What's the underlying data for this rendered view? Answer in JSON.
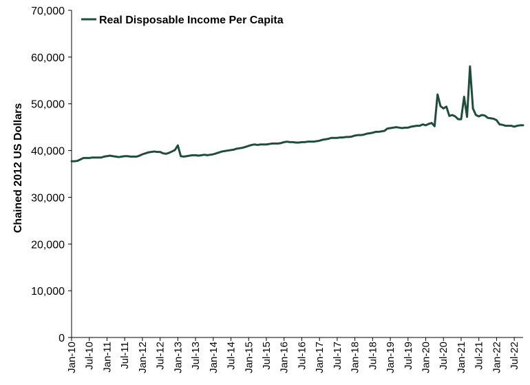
{
  "chart_data": {
    "type": "line",
    "ylabel": "Chained 2012 US Dollars",
    "xlabel": "",
    "ylim": [
      0,
      70000
    ],
    "yticks": [
      "0",
      "10,000",
      "20,000",
      "30,000",
      "40,000",
      "50,000",
      "60,000",
      "70,000"
    ],
    "xticks": [
      "Jan-10",
      "Jul-10",
      "Jan-11",
      "Jul-11",
      "Jan-12",
      "Jul-12",
      "Jan-13",
      "Jul-13",
      "Jan-14",
      "Jul-14",
      "Jan-15",
      "Jul-15",
      "Jan-16",
      "Jul-16",
      "Jan-17",
      "Jul-17",
      "Jan-18",
      "Jul-18",
      "Jan-19",
      "Jul-19",
      "Jan-20",
      "Jul-20",
      "Jan-21",
      "Jul-21",
      "Jan-22",
      "Jul-22"
    ],
    "grid": false,
    "legend": "top-left",
    "series": [
      {
        "name": "Real Disposable Income Per Capita",
        "color": "#1e4d3b",
        "x": [
          "2010-01",
          "2010-02",
          "2010-03",
          "2010-04",
          "2010-05",
          "2010-06",
          "2010-07",
          "2010-08",
          "2010-09",
          "2010-10",
          "2010-11",
          "2010-12",
          "2011-01",
          "2011-02",
          "2011-03",
          "2011-04",
          "2011-05",
          "2011-06",
          "2011-07",
          "2011-08",
          "2011-09",
          "2011-10",
          "2011-11",
          "2011-12",
          "2012-01",
          "2012-02",
          "2012-03",
          "2012-04",
          "2012-05",
          "2012-06",
          "2012-07",
          "2012-08",
          "2012-09",
          "2012-10",
          "2012-11",
          "2012-12",
          "2013-01",
          "2013-02",
          "2013-03",
          "2013-04",
          "2013-05",
          "2013-06",
          "2013-07",
          "2013-08",
          "2013-09",
          "2013-10",
          "2013-11",
          "2013-12",
          "2014-01",
          "2014-02",
          "2014-03",
          "2014-04",
          "2014-05",
          "2014-06",
          "2014-07",
          "2014-08",
          "2014-09",
          "2014-10",
          "2014-11",
          "2014-12",
          "2015-01",
          "2015-02",
          "2015-03",
          "2015-04",
          "2015-05",
          "2015-06",
          "2015-07",
          "2015-08",
          "2015-09",
          "2015-10",
          "2015-11",
          "2015-12",
          "2016-01",
          "2016-02",
          "2016-03",
          "2016-04",
          "2016-05",
          "2016-06",
          "2016-07",
          "2016-08",
          "2016-09",
          "2016-10",
          "2016-11",
          "2016-12",
          "2017-01",
          "2017-02",
          "2017-03",
          "2017-04",
          "2017-05",
          "2017-06",
          "2017-07",
          "2017-08",
          "2017-09",
          "2017-10",
          "2017-11",
          "2017-12",
          "2018-01",
          "2018-02",
          "2018-03",
          "2018-04",
          "2018-05",
          "2018-06",
          "2018-07",
          "2018-08",
          "2018-09",
          "2018-10",
          "2018-11",
          "2018-12",
          "2019-01",
          "2019-02",
          "2019-03",
          "2019-04",
          "2019-05",
          "2019-06",
          "2019-07",
          "2019-08",
          "2019-09",
          "2019-10",
          "2019-11",
          "2019-12",
          "2020-01",
          "2020-02",
          "2020-03",
          "2020-04",
          "2020-05",
          "2020-06",
          "2020-07",
          "2020-08",
          "2020-09",
          "2020-10",
          "2020-11",
          "2020-12",
          "2021-01",
          "2021-02",
          "2021-03",
          "2021-04",
          "2021-05",
          "2021-06",
          "2021-07",
          "2021-08",
          "2021-09",
          "2021-10",
          "2021-11",
          "2021-12",
          "2022-01",
          "2022-02",
          "2022-03",
          "2022-04",
          "2022-05",
          "2022-06",
          "2022-07",
          "2022-08",
          "2022-09",
          "2022-10"
        ],
        "values": [
          37700,
          37700,
          37800,
          38100,
          38400,
          38400,
          38400,
          38500,
          38500,
          38500,
          38500,
          38700,
          38800,
          38900,
          38800,
          38700,
          38600,
          38700,
          38800,
          38800,
          38700,
          38700,
          38700,
          38900,
          39200,
          39400,
          39600,
          39700,
          39800,
          39700,
          39700,
          39400,
          39300,
          39500,
          39800,
          40100,
          41100,
          38800,
          38700,
          38800,
          38900,
          39000,
          39000,
          38900,
          39000,
          39100,
          39000,
          39100,
          39200,
          39400,
          39600,
          39800,
          39900,
          40000,
          40100,
          40200,
          40400,
          40500,
          40600,
          40800,
          41000,
          41200,
          41300,
          41200,
          41300,
          41300,
          41300,
          41400,
          41500,
          41500,
          41500,
          41600,
          41800,
          41900,
          41800,
          41800,
          41700,
          41700,
          41800,
          41800,
          41900,
          41900,
          41900,
          42000,
          42100,
          42300,
          42400,
          42500,
          42700,
          42700,
          42700,
          42800,
          42800,
          42900,
          42900,
          43000,
          43200,
          43300,
          43300,
          43400,
          43600,
          43700,
          43800,
          44000,
          44000,
          44100,
          44200,
          44700,
          44800,
          44900,
          45000,
          44900,
          44800,
          44900,
          44900,
          45100,
          45200,
          45300,
          45300,
          45600,
          45400,
          45700,
          45900,
          45200,
          52000,
          49500,
          49000,
          49400,
          47400,
          47600,
          47300,
          46700,
          46700,
          51500,
          47200,
          58000,
          49000,
          47600,
          47300,
          47600,
          47500,
          47000,
          46900,
          46800,
          46500,
          45600,
          45500,
          45300,
          45300,
          45300,
          45100,
          45300,
          45400,
          45400
        ]
      }
    ]
  }
}
